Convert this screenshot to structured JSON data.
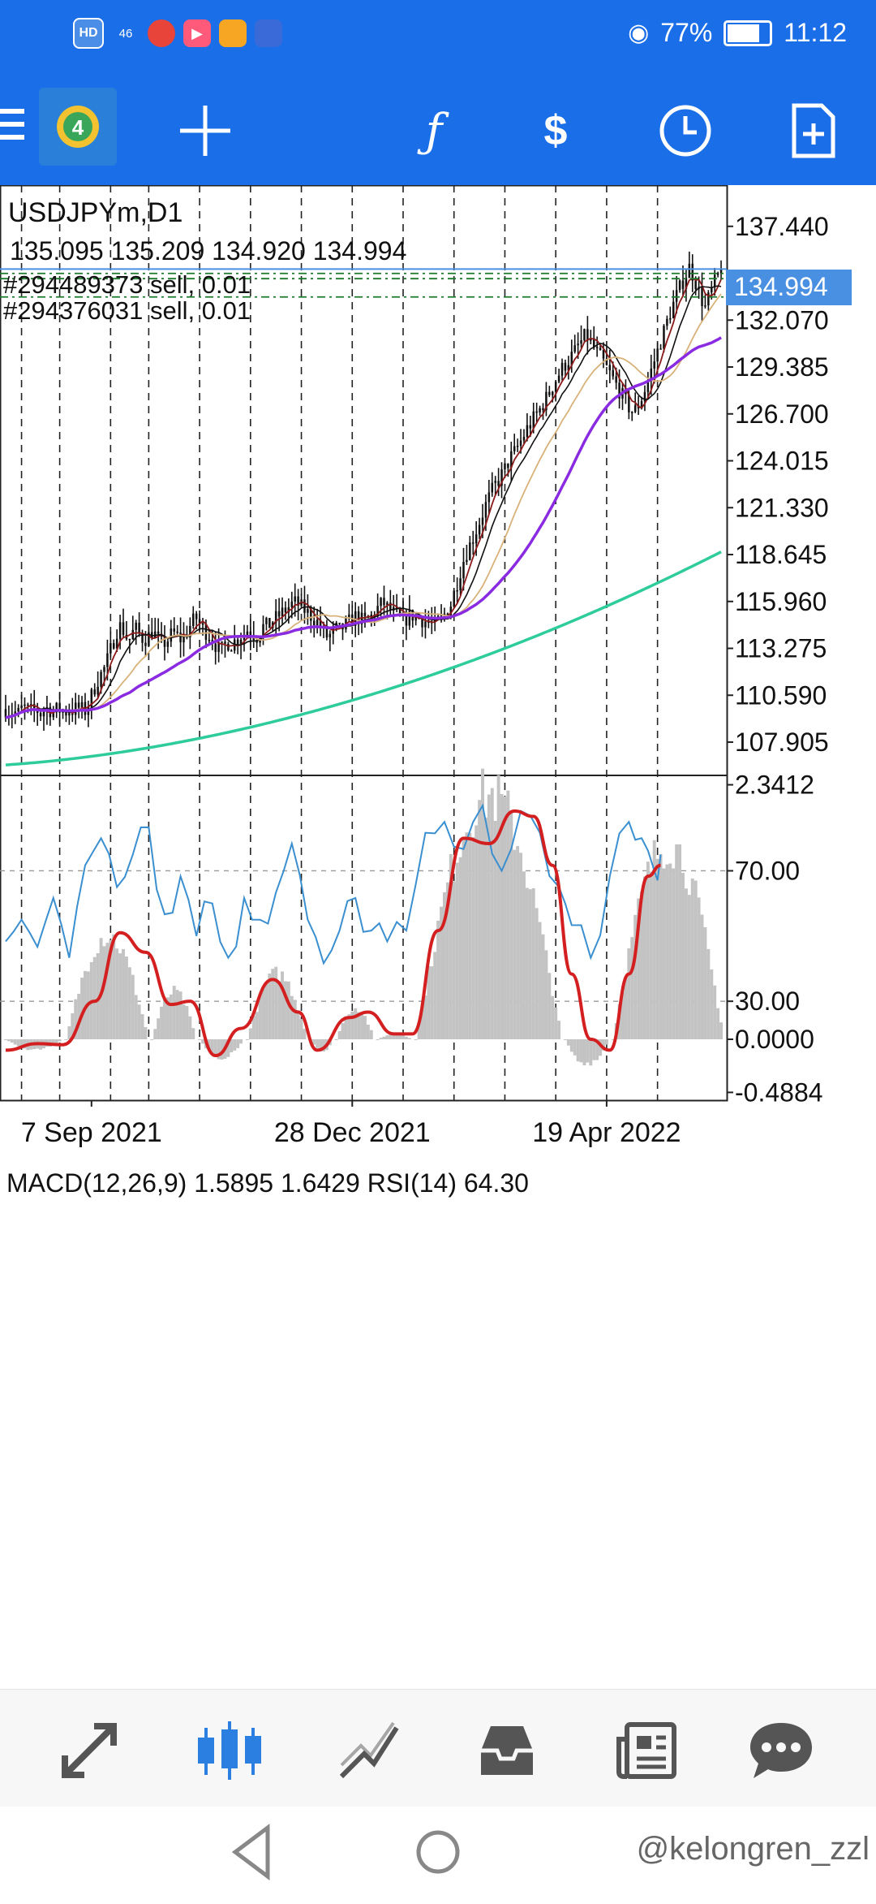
{
  "status_bar": {
    "left_icons": [
      "hd-icon",
      "signal-46-icon",
      "chrome-icon",
      "video-app-icon",
      "app-icon",
      "baidu-icon"
    ],
    "hd_label": "HD",
    "net_label": "46",
    "battery": "77%",
    "time": "11:12"
  },
  "toolbar": {
    "icons": [
      "menu-icon",
      "metatrader-icon",
      "crosshair-icon",
      "function-icon",
      "trade-icon",
      "clock-icon",
      "new-order-icon"
    ]
  },
  "colors": {
    "accent": "#1a6ee8",
    "ma_purple": "#8a2be2",
    "ma_green": "#2ecc9a",
    "macd_red": "#d31f1f",
    "rsi_blue": "#3a8fd0",
    "histogram": "#c3c3c3",
    "price_tag": "#4a90e2"
  },
  "chart_data": {
    "type": "line",
    "symbol_label": "USDJPYm,D1",
    "ohlc_label": "135.095 135.209 134.920 134.994",
    "orders": [
      "#294489373 sell, 0.01",
      "#294376031 sell, 0.01"
    ],
    "current_price": "134.994",
    "price_ticks": [
      "137.440",
      "132.070",
      "129.385",
      "126.700",
      "124.015",
      "121.330",
      "118.645",
      "115.960",
      "113.275",
      "110.590",
      "107.905"
    ],
    "price_tick_values": [
      137.44,
      132.07,
      129.385,
      126.7,
      124.015,
      121.33,
      118.645,
      115.96,
      113.275,
      110.59,
      107.905
    ],
    "price_range": [
      106.0,
      139.8
    ],
    "x_labels": [
      "7 Sep 2021",
      "28 Dec 2021",
      "19 Apr 2022"
    ],
    "x_label_index": [
      27,
      109,
      189
    ],
    "n_bars": 226,
    "close": [
      109.8,
      109.6,
      109.7,
      109.5,
      109.8,
      109.9,
      109.6,
      109.8,
      109.7,
      109.5,
      109.9,
      109.8,
      109.6,
      109.8,
      109.7,
      109.6,
      109.8,
      109.7,
      109.9,
      109.8,
      109.7,
      110.2,
      110.8,
      111.4,
      111.8,
      112.2,
      112.9,
      113.6,
      114.3,
      114.6,
      114.1,
      113.7,
      114.2,
      114.4,
      113.9,
      113.8,
      114.0,
      114.3,
      113.9,
      113.5,
      113.6,
      113.8,
      114.2,
      114.0,
      113.8,
      113.9,
      114.4,
      114.8,
      115.0,
      114.6,
      114.3,
      114.1,
      113.8,
      113.4,
      113.1,
      113.4,
      113.6,
      113.5,
      113.8,
      114.0,
      114.1,
      114.4,
      114.2,
      113.9,
      114.2,
      114.6,
      114.5,
      114.8,
      115.0,
      115.2,
      115.4,
      115.6,
      115.8,
      115.9,
      115.7,
      115.5,
      115.3,
      115.1,
      114.9,
      114.6,
      114.2,
      113.9,
      114.1,
      114.4,
      114.3,
      114.5,
      114.7,
      114.9,
      115.1,
      115.0,
      114.8,
      114.9,
      115.1,
      115.4,
      115.7,
      115.9,
      115.6,
      115.4,
      115.2,
      115.0,
      114.9,
      115.0,
      115.2,
      115.1,
      115.0,
      114.9,
      114.8,
      114.7,
      114.6,
      114.9,
      115.1,
      115.4,
      115.8,
      116.6,
      117.4,
      118.2,
      118.8,
      119.3,
      119.8,
      120.4,
      121.0,
      121.6,
      122.1,
      122.6,
      122.9,
      123.3,
      123.7,
      124.2,
      124.5,
      124.9,
      125.3,
      125.8,
      126.1,
      126.5,
      126.8,
      127.2,
      127.6,
      128.0,
      128.5,
      128.9,
      129.3,
      129.6,
      129.9,
      130.2,
      130.6,
      130.9,
      131.2,
      130.9,
      130.5,
      130.1,
      129.8,
      129.4,
      129.0,
      128.6,
      128.2,
      127.8,
      127.4,
      127.0,
      126.8,
      127.1,
      127.6,
      128.2,
      128.9,
      129.6,
      130.3,
      131.0,
      131.7,
      132.4,
      133.0,
      133.6,
      134.1,
      134.6,
      135.1,
      134.6,
      134.0,
      133.3,
      132.8,
      133.4,
      134.0,
      134.5,
      134.99
    ],
    "volatility": 1.6,
    "ma_overlays": [
      {
        "color": "#8a2be2",
        "width": 3.5,
        "start": 109.2,
        "end": 129.1,
        "curve": "fast"
      },
      {
        "color": "#2ecc9a",
        "width": 3.5,
        "start": 106.6,
        "end": 118.8,
        "curve": "slow"
      }
    ],
    "indicator_label": "MACD(12,26,9) 1.5895 1.6429 RSI(14) 64.30",
    "indicator_ticks": [
      "2.3412",
      "70.00",
      "30.00",
      "0.0000",
      "-0.4884"
    ],
    "indicator_tick_values": [
      2.3412,
      1.55,
      0.35,
      0.0,
      -0.4884
    ],
    "indicator_range": [
      -0.56,
      2.42
    ],
    "macd_histogram_peaks": [
      {
        "from": 0,
        "to": 18,
        "peak": -0.1
      },
      {
        "from": 19,
        "to": 45,
        "peak": 0.98
      },
      {
        "from": 46,
        "to": 60,
        "peak": 0.45
      },
      {
        "from": 61,
        "to": 75,
        "peak": -0.18
      },
      {
        "from": 76,
        "to": 95,
        "peak": 0.62
      },
      {
        "from": 96,
        "to": 103,
        "peak": -0.12
      },
      {
        "from": 104,
        "to": 116,
        "peak": 0.3
      },
      {
        "from": 117,
        "to": 128,
        "peak": 0.05
      },
      {
        "from": 129,
        "to": 175,
        "peak": 2.3
      },
      {
        "from": 176,
        "to": 190,
        "peak": -0.25
      },
      {
        "from": 191,
        "to": 226,
        "peak": 1.85
      }
    ],
    "macd_signal_points": [
      [
        0,
        -0.1
      ],
      [
        10,
        -0.04
      ],
      [
        18,
        -0.05
      ],
      [
        28,
        0.35
      ],
      [
        36,
        0.98
      ],
      [
        44,
        0.8
      ],
      [
        52,
        0.32
      ],
      [
        58,
        0.35
      ],
      [
        66,
        -0.15
      ],
      [
        74,
        0.1
      ],
      [
        84,
        0.55
      ],
      [
        92,
        0.25
      ],
      [
        98,
        -0.1
      ],
      [
        108,
        0.2
      ],
      [
        114,
        0.25
      ],
      [
        122,
        0.05
      ],
      [
        128,
        0.05
      ],
      [
        136,
        1.0
      ],
      [
        144,
        1.85
      ],
      [
        152,
        1.8
      ],
      [
        160,
        2.1
      ],
      [
        166,
        2.05
      ],
      [
        172,
        1.6
      ],
      [
        178,
        0.6
      ],
      [
        184,
        0.0
      ],
      [
        190,
        -0.1
      ],
      [
        196,
        0.6
      ],
      [
        202,
        1.5
      ],
      [
        206,
        1.6
      ]
    ],
    "rsi_points": [
      [
        0,
        0.9
      ],
      [
        5,
        1.1
      ],
      [
        10,
        0.85
      ],
      [
        15,
        1.3
      ],
      [
        20,
        0.75
      ],
      [
        25,
        1.6
      ],
      [
        30,
        1.85
      ],
      [
        35,
        1.4
      ],
      [
        40,
        1.7
      ],
      [
        45,
        1.95
      ],
      [
        50,
        1.15
      ],
      [
        55,
        1.5
      ],
      [
        60,
        0.95
      ],
      [
        65,
        1.25
      ],
      [
        70,
        0.75
      ],
      [
        75,
        1.3
      ],
      [
        80,
        1.1
      ],
      [
        85,
        1.35
      ],
      [
        90,
        1.8
      ],
      [
        95,
        1.1
      ],
      [
        100,
        0.7
      ],
      [
        105,
        1.0
      ],
      [
        110,
        1.3
      ],
      [
        115,
        1.0
      ],
      [
        120,
        0.9
      ],
      [
        126,
        1.0
      ],
      [
        132,
        1.9
      ],
      [
        138,
        2.0
      ],
      [
        144,
        1.75
      ],
      [
        150,
        2.15
      ],
      [
        156,
        1.55
      ],
      [
        162,
        2.1
      ],
      [
        168,
        1.9
      ],
      [
        174,
        1.4
      ],
      [
        178,
        1.05
      ],
      [
        184,
        0.75
      ],
      [
        190,
        1.5
      ],
      [
        196,
        2.0
      ],
      [
        200,
        1.85
      ],
      [
        204,
        1.55
      ],
      [
        206,
        1.7
      ]
    ],
    "grid": true
  },
  "bottom_nav": {
    "items": [
      "quotes-icon",
      "chart-icon",
      "trade-icon",
      "history-icon",
      "news-icon",
      "messages-icon"
    ]
  },
  "watermark": "@kelongren_zzl"
}
